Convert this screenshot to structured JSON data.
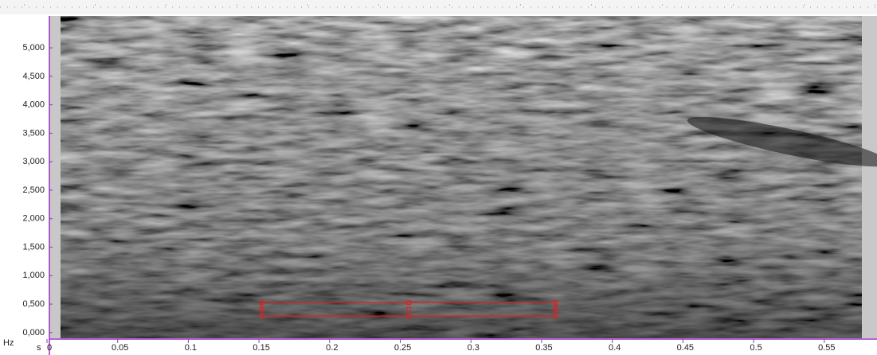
{
  "chart_data": {
    "type": "spectrogram",
    "x_label": "s",
    "y_label": "Hz",
    "xlim": [
      0,
      0.58
    ],
    "ylim": [
      -100,
      5560
    ],
    "xticks": [
      0,
      0.05,
      0.1,
      0.15,
      0.2,
      0.25,
      0.3,
      0.35,
      0.4,
      0.45,
      0.5,
      0.55
    ],
    "yticks": [
      {
        "value": 0,
        "label": "0,000"
      },
      {
        "value": 500,
        "label": "0,500"
      },
      {
        "value": 1000,
        "label": "1,000"
      },
      {
        "value": 1500,
        "label": "1,500"
      },
      {
        "value": 2000,
        "label": "2,000"
      },
      {
        "value": 2500,
        "label": "2,500"
      },
      {
        "value": 3000,
        "label": "3,000"
      },
      {
        "value": 3500,
        "label": "3,500"
      },
      {
        "value": 4000,
        "label": "4,000"
      },
      {
        "value": 4500,
        "label": "4,500"
      },
      {
        "value": 5000,
        "label": "5,000"
      }
    ],
    "selection": {
      "x": [
        0.152,
        0.36
      ],
      "y": [
        290,
        530
      ],
      "color": "#e02020"
    },
    "axis_color": "#9b30c8"
  }
}
